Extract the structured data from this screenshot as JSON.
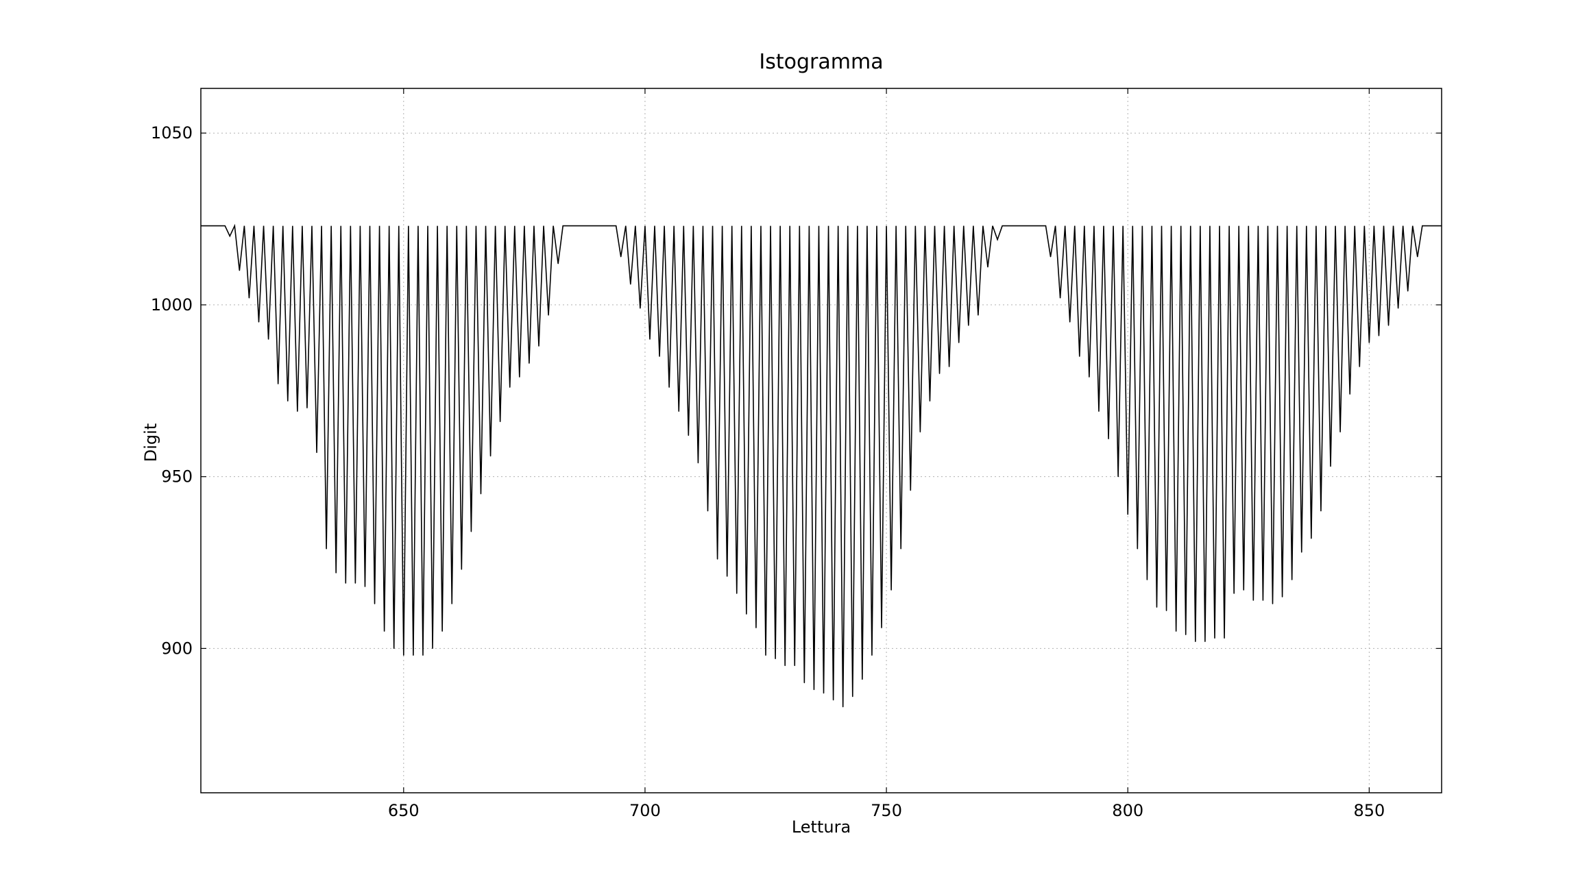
{
  "chart_data": {
    "type": "line",
    "title": "Istogramma",
    "xlabel": "Lettura",
    "ylabel": "Digit",
    "xlim": [
      608,
      865
    ],
    "ylim": [
      858,
      1063
    ],
    "xticks": [
      650,
      700,
      750,
      800,
      850
    ],
    "yticks": [
      900,
      950,
      1000,
      1050
    ],
    "xtick_labels": [
      "650",
      "700",
      "750",
      "800",
      "850"
    ],
    "ytick_labels": [
      "900",
      "950",
      "1000",
      "1050"
    ],
    "grid": true,
    "baseline": 1023,
    "series": [
      {
        "color": "#000000",
        "dips": [
          {
            "x": 614,
            "y": 1020
          },
          {
            "x": 616,
            "y": 1010
          },
          {
            "x": 618,
            "y": 1002
          },
          {
            "x": 620,
            "y": 995
          },
          {
            "x": 622,
            "y": 990
          },
          {
            "x": 624,
            "y": 977
          },
          {
            "x": 626,
            "y": 972
          },
          {
            "x": 628,
            "y": 969
          },
          {
            "x": 630,
            "y": 970
          },
          {
            "x": 632,
            "y": 957
          },
          {
            "x": 634,
            "y": 929
          },
          {
            "x": 636,
            "y": 922
          },
          {
            "x": 638,
            "y": 919
          },
          {
            "x": 640,
            "y": 919
          },
          {
            "x": 642,
            "y": 918
          },
          {
            "x": 644,
            "y": 913
          },
          {
            "x": 646,
            "y": 905
          },
          {
            "x": 648,
            "y": 900
          },
          {
            "x": 650,
            "y": 898
          },
          {
            "x": 652,
            "y": 898
          },
          {
            "x": 654,
            "y": 898
          },
          {
            "x": 656,
            "y": 900
          },
          {
            "x": 658,
            "y": 905
          },
          {
            "x": 660,
            "y": 913
          },
          {
            "x": 662,
            "y": 923
          },
          {
            "x": 664,
            "y": 934
          },
          {
            "x": 666,
            "y": 945
          },
          {
            "x": 668,
            "y": 956
          },
          {
            "x": 670,
            "y": 966
          },
          {
            "x": 672,
            "y": 976
          },
          {
            "x": 674,
            "y": 979
          },
          {
            "x": 676,
            "y": 983
          },
          {
            "x": 678,
            "y": 988
          },
          {
            "x": 680,
            "y": 997
          },
          {
            "x": 682,
            "y": 1012
          },
          {
            "x": 695,
            "y": 1014
          },
          {
            "x": 697,
            "y": 1006
          },
          {
            "x": 699,
            "y": 999
          },
          {
            "x": 701,
            "y": 990
          },
          {
            "x": 703,
            "y": 985
          },
          {
            "x": 705,
            "y": 976
          },
          {
            "x": 707,
            "y": 969
          },
          {
            "x": 709,
            "y": 962
          },
          {
            "x": 711,
            "y": 954
          },
          {
            "x": 713,
            "y": 940
          },
          {
            "x": 715,
            "y": 926
          },
          {
            "x": 717,
            "y": 921
          },
          {
            "x": 719,
            "y": 916
          },
          {
            "x": 721,
            "y": 910
          },
          {
            "x": 723,
            "y": 906
          },
          {
            "x": 725,
            "y": 898
          },
          {
            "x": 727,
            "y": 897
          },
          {
            "x": 729,
            "y": 895
          },
          {
            "x": 731,
            "y": 895
          },
          {
            "x": 733,
            "y": 890
          },
          {
            "x": 735,
            "y": 888
          },
          {
            "x": 737,
            "y": 887
          },
          {
            "x": 739,
            "y": 885
          },
          {
            "x": 741,
            "y": 883
          },
          {
            "x": 743,
            "y": 886
          },
          {
            "x": 745,
            "y": 891
          },
          {
            "x": 747,
            "y": 898
          },
          {
            "x": 749,
            "y": 906
          },
          {
            "x": 751,
            "y": 917
          },
          {
            "x": 753,
            "y": 929
          },
          {
            "x": 755,
            "y": 946
          },
          {
            "x": 757,
            "y": 963
          },
          {
            "x": 759,
            "y": 972
          },
          {
            "x": 761,
            "y": 980
          },
          {
            "x": 763,
            "y": 982
          },
          {
            "x": 765,
            "y": 989
          },
          {
            "x": 767,
            "y": 994
          },
          {
            "x": 769,
            "y": 997
          },
          {
            "x": 771,
            "y": 1011
          },
          {
            "x": 773,
            "y": 1019
          },
          {
            "x": 784,
            "y": 1014
          },
          {
            "x": 786,
            "y": 1002
          },
          {
            "x": 788,
            "y": 995
          },
          {
            "x": 790,
            "y": 985
          },
          {
            "x": 792,
            "y": 979
          },
          {
            "x": 794,
            "y": 969
          },
          {
            "x": 796,
            "y": 961
          },
          {
            "x": 798,
            "y": 950
          },
          {
            "x": 800,
            "y": 939
          },
          {
            "x": 802,
            "y": 929
          },
          {
            "x": 804,
            "y": 920
          },
          {
            "x": 806,
            "y": 912
          },
          {
            "x": 808,
            "y": 911
          },
          {
            "x": 810,
            "y": 905
          },
          {
            "x": 812,
            "y": 904
          },
          {
            "x": 814,
            "y": 902
          },
          {
            "x": 816,
            "y": 902
          },
          {
            "x": 818,
            "y": 903
          },
          {
            "x": 820,
            "y": 903
          },
          {
            "x": 822,
            "y": 916
          },
          {
            "x": 824,
            "y": 917
          },
          {
            "x": 826,
            "y": 914
          },
          {
            "x": 828,
            "y": 914
          },
          {
            "x": 830,
            "y": 913
          },
          {
            "x": 832,
            "y": 915
          },
          {
            "x": 834,
            "y": 920
          },
          {
            "x": 836,
            "y": 928
          },
          {
            "x": 838,
            "y": 932
          },
          {
            "x": 840,
            "y": 940
          },
          {
            "x": 842,
            "y": 953
          },
          {
            "x": 844,
            "y": 963
          },
          {
            "x": 846,
            "y": 974
          },
          {
            "x": 848,
            "y": 982
          },
          {
            "x": 850,
            "y": 989
          },
          {
            "x": 852,
            "y": 991
          },
          {
            "x": 854,
            "y": 994
          },
          {
            "x": 856,
            "y": 999
          },
          {
            "x": 858,
            "y": 1004
          },
          {
            "x": 860,
            "y": 1014
          }
        ]
      }
    ]
  }
}
